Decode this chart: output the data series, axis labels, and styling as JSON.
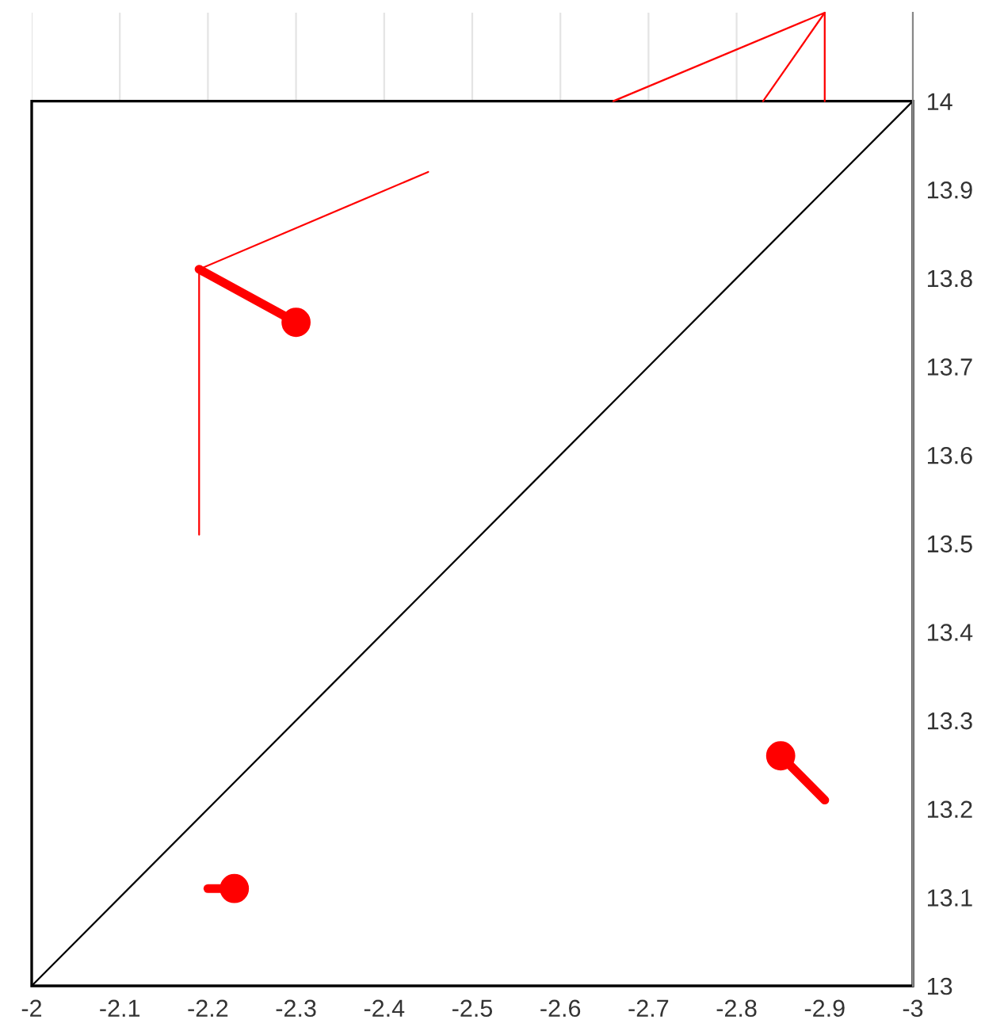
{
  "chart_data": {
    "type": "line",
    "xlim": [
      -2,
      -3
    ],
    "xticks": [
      -2,
      -2.1,
      -2.2,
      -2.3,
      -2.4,
      -2.5,
      -2.6,
      -2.7,
      -2.8,
      -2.9,
      -3
    ],
    "ylim": [
      13,
      14.1
    ],
    "yticks": [
      13,
      13.1,
      13.2,
      13.3,
      13.4,
      13.5,
      13.6,
      13.7,
      13.8,
      13.9,
      14
    ],
    "grid": "x",
    "series": [
      {
        "color": "#000000",
        "x": [
          -2,
          -3
        ],
        "values": [
          13,
          14
        ]
      },
      {
        "color": "#ff0000",
        "x": [
          -2.45,
          -2.19,
          -2.19
        ],
        "values": [
          13.92,
          13.81,
          13.51
        ]
      },
      {
        "color": "#ff0000",
        "x": [
          -2.19,
          -2.3
        ],
        "values": [
          13.81,
          13.75
        ]
      },
      {
        "color": "#ff0000",
        "x": [
          -2.66,
          -2.9,
          -2.83
        ],
        "values": [
          14,
          14.1,
          14
        ]
      },
      {
        "color": "#ff0000",
        "x": [
          -2.9,
          -2.9
        ],
        "values": [
          14.1,
          14
        ]
      },
      {
        "color": "#ff0000",
        "x": [
          -2.2,
          -2.23
        ],
        "values": [
          13.11,
          13.11
        ]
      },
      {
        "color": "#ff0000",
        "x": [
          -2.85,
          -2.9
        ],
        "values": [
          13.26,
          13.21
        ]
      },
      {
        "type": "scatter",
        "marker": "circle",
        "color": "#ff0000",
        "x": [
          -2.23,
          -2.3,
          -2.85
        ],
        "values": [
          13.11,
          13.75,
          13.26
        ]
      }
    ]
  }
}
